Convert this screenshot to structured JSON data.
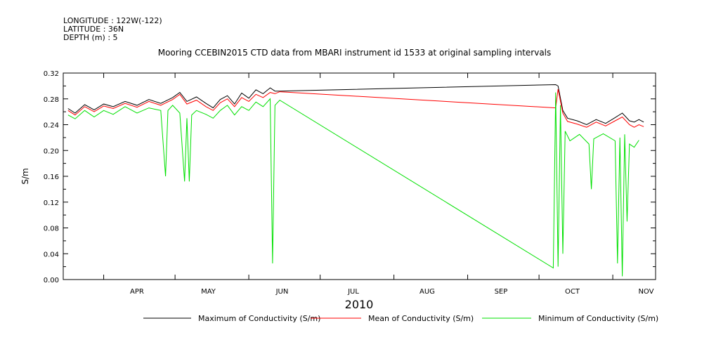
{
  "header": {
    "longitude": "LONGITUDE : 122W(-122)",
    "latitude": "LATITUDE : 36N",
    "depth": "DEPTH (m) : 5"
  },
  "chart_data": {
    "type": "line",
    "title": "Mooring CCEBIN2015 CTD data from MBARI instrument id 1533 at original sampling intervals",
    "xlabel": "2010",
    "ylabel": "S/m",
    "ylim": [
      0.0,
      0.32
    ],
    "yticks": [
      "0.00",
      "0.04",
      "0.08",
      "0.12",
      "0.16",
      "0.20",
      "0.24",
      "0.28",
      "0.32"
    ],
    "xlim": [
      "2010-03-15",
      "2010-11-19"
    ],
    "month_labels": [
      {
        "label": "APR",
        "date": "2010-04-15"
      },
      {
        "label": "MAY",
        "date": "2010-05-15"
      },
      {
        "label": "JUN",
        "date": "2010-06-15"
      },
      {
        "label": "JUL",
        "date": "2010-07-15"
      },
      {
        "label": "AUG",
        "date": "2010-08-15"
      },
      {
        "label": "SEP",
        "date": "2010-09-15"
      },
      {
        "label": "OCT",
        "date": "2010-10-15"
      },
      {
        "label": "NOV",
        "date": "2010-11-15"
      }
    ],
    "month_starts": [
      "2010-04-01",
      "2010-05-01",
      "2010-06-01",
      "2010-07-01",
      "2010-08-01",
      "2010-09-01",
      "2010-10-01",
      "2010-11-01"
    ],
    "legend_placement": "bottom",
    "series": [
      {
        "name": "Maximum of Conductivity (S/m)",
        "color": "#000000",
        "points": [
          [
            "2010-03-17",
            0.265
          ],
          [
            "2010-03-20",
            0.258
          ],
          [
            "2010-03-24",
            0.271
          ],
          [
            "2010-03-28",
            0.263
          ],
          [
            "2010-04-01",
            0.272
          ],
          [
            "2010-04-05",
            0.268
          ],
          [
            "2010-04-10",
            0.276
          ],
          [
            "2010-04-15",
            0.27
          ],
          [
            "2010-04-20",
            0.279
          ],
          [
            "2010-04-25",
            0.273
          ],
          [
            "2010-04-30",
            0.282
          ],
          [
            "2010-05-03",
            0.29
          ],
          [
            "2010-05-06",
            0.276
          ],
          [
            "2010-05-10",
            0.283
          ],
          [
            "2010-05-14",
            0.273
          ],
          [
            "2010-05-17",
            0.266
          ],
          [
            "2010-05-20",
            0.279
          ],
          [
            "2010-05-23",
            0.285
          ],
          [
            "2010-05-26",
            0.272
          ],
          [
            "2010-05-29",
            0.289
          ],
          [
            "2010-06-01",
            0.281
          ],
          [
            "2010-06-04",
            0.294
          ],
          [
            "2010-06-07",
            0.288
          ],
          [
            "2010-06-10",
            0.297
          ],
          [
            "2010-06-12",
            0.292
          ],
          [
            "2010-06-14",
            0.292
          ],
          [
            "2010-10-08",
            0.302
          ],
          [
            "2010-10-09",
            0.3
          ],
          [
            "2010-10-11",
            0.262
          ],
          [
            "2010-10-13",
            0.25
          ],
          [
            "2010-10-17",
            0.246
          ],
          [
            "2010-10-21",
            0.24
          ],
          [
            "2010-10-25",
            0.248
          ],
          [
            "2010-10-29",
            0.242
          ],
          [
            "2010-11-02",
            0.251
          ],
          [
            "2010-11-05",
            0.258
          ],
          [
            "2010-11-08",
            0.246
          ],
          [
            "2010-11-10",
            0.244
          ],
          [
            "2010-11-12",
            0.248
          ],
          [
            "2010-11-14",
            0.244
          ]
        ]
      },
      {
        "name": "Mean of Conductivity (S/m)",
        "color": "#ff0000",
        "points": [
          [
            "2010-03-17",
            0.262
          ],
          [
            "2010-03-20",
            0.255
          ],
          [
            "2010-03-24",
            0.268
          ],
          [
            "2010-03-28",
            0.26
          ],
          [
            "2010-04-01",
            0.269
          ],
          [
            "2010-04-05",
            0.265
          ],
          [
            "2010-04-10",
            0.273
          ],
          [
            "2010-04-15",
            0.267
          ],
          [
            "2010-04-20",
            0.276
          ],
          [
            "2010-04-25",
            0.27
          ],
          [
            "2010-04-30",
            0.279
          ],
          [
            "2010-05-03",
            0.287
          ],
          [
            "2010-05-06",
            0.272
          ],
          [
            "2010-05-10",
            0.278
          ],
          [
            "2010-05-14",
            0.268
          ],
          [
            "2010-05-17",
            0.262
          ],
          [
            "2010-05-20",
            0.274
          ],
          [
            "2010-05-23",
            0.28
          ],
          [
            "2010-05-26",
            0.268
          ],
          [
            "2010-05-29",
            0.282
          ],
          [
            "2010-06-01",
            0.276
          ],
          [
            "2010-06-04",
            0.287
          ],
          [
            "2010-06-07",
            0.282
          ],
          [
            "2010-06-10",
            0.29
          ],
          [
            "2010-06-12",
            0.288
          ],
          [
            "2010-06-14",
            0.291
          ],
          [
            "2010-10-08",
            0.266
          ],
          [
            "2010-10-09",
            0.295
          ],
          [
            "2010-10-11",
            0.258
          ],
          [
            "2010-10-13",
            0.245
          ],
          [
            "2010-10-17",
            0.241
          ],
          [
            "2010-10-21",
            0.236
          ],
          [
            "2010-10-25",
            0.244
          ],
          [
            "2010-10-29",
            0.238
          ],
          [
            "2010-11-02",
            0.246
          ],
          [
            "2010-11-05",
            0.252
          ],
          [
            "2010-11-08",
            0.24
          ],
          [
            "2010-11-10",
            0.236
          ],
          [
            "2010-11-12",
            0.24
          ],
          [
            "2010-11-14",
            0.237
          ]
        ]
      },
      {
        "name": "Minimum of Conductivity (S/m)",
        "color": "#00e000",
        "points": [
          [
            "2010-03-17",
            0.255
          ],
          [
            "2010-03-20",
            0.249
          ],
          [
            "2010-03-24",
            0.262
          ],
          [
            "2010-03-28",
            0.252
          ],
          [
            "2010-04-01",
            0.262
          ],
          [
            "2010-04-05",
            0.256
          ],
          [
            "2010-04-10",
            0.268
          ],
          [
            "2010-04-15",
            0.258
          ],
          [
            "2010-04-20",
            0.266
          ],
          [
            "2010-04-25",
            0.262
          ],
          [
            "2010-04-27",
            0.16
          ],
          [
            "2010-04-28",
            0.262
          ],
          [
            "2010-04-30",
            0.27
          ],
          [
            "2010-05-03",
            0.258
          ],
          [
            "2010-05-05",
            0.152
          ],
          [
            "2010-05-06",
            0.25
          ],
          [
            "2010-05-07",
            0.152
          ],
          [
            "2010-05-08",
            0.255
          ],
          [
            "2010-05-10",
            0.262
          ],
          [
            "2010-05-14",
            0.256
          ],
          [
            "2010-05-17",
            0.25
          ],
          [
            "2010-05-20",
            0.262
          ],
          [
            "2010-05-23",
            0.27
          ],
          [
            "2010-05-26",
            0.255
          ],
          [
            "2010-05-29",
            0.268
          ],
          [
            "2010-06-01",
            0.262
          ],
          [
            "2010-06-04",
            0.275
          ],
          [
            "2010-06-07",
            0.268
          ],
          [
            "2010-06-10",
            0.28
          ],
          [
            "2010-06-11",
            0.025
          ],
          [
            "2010-06-12",
            0.27
          ],
          [
            "2010-06-14",
            0.278
          ],
          [
            "2010-10-07",
            0.018
          ],
          [
            "2010-10-08",
            0.29
          ],
          [
            "2010-10-09",
            0.02
          ],
          [
            "2010-10-10",
            0.27
          ],
          [
            "2010-10-11",
            0.04
          ],
          [
            "2010-10-12",
            0.23
          ],
          [
            "2010-10-14",
            0.215
          ],
          [
            "2010-10-18",
            0.225
          ],
          [
            "2010-10-22",
            0.21
          ],
          [
            "2010-10-23",
            0.14
          ],
          [
            "2010-10-24",
            0.218
          ],
          [
            "2010-10-28",
            0.226
          ],
          [
            "2010-11-02",
            0.215
          ],
          [
            "2010-11-03",
            0.025
          ],
          [
            "2010-11-04",
            0.22
          ],
          [
            "2010-11-05",
            0.005
          ],
          [
            "2010-11-06",
            0.225
          ],
          [
            "2010-11-07",
            0.09
          ],
          [
            "2010-11-08",
            0.21
          ],
          [
            "2010-11-10",
            0.205
          ],
          [
            "2010-11-12",
            0.216
          ]
        ]
      }
    ]
  }
}
